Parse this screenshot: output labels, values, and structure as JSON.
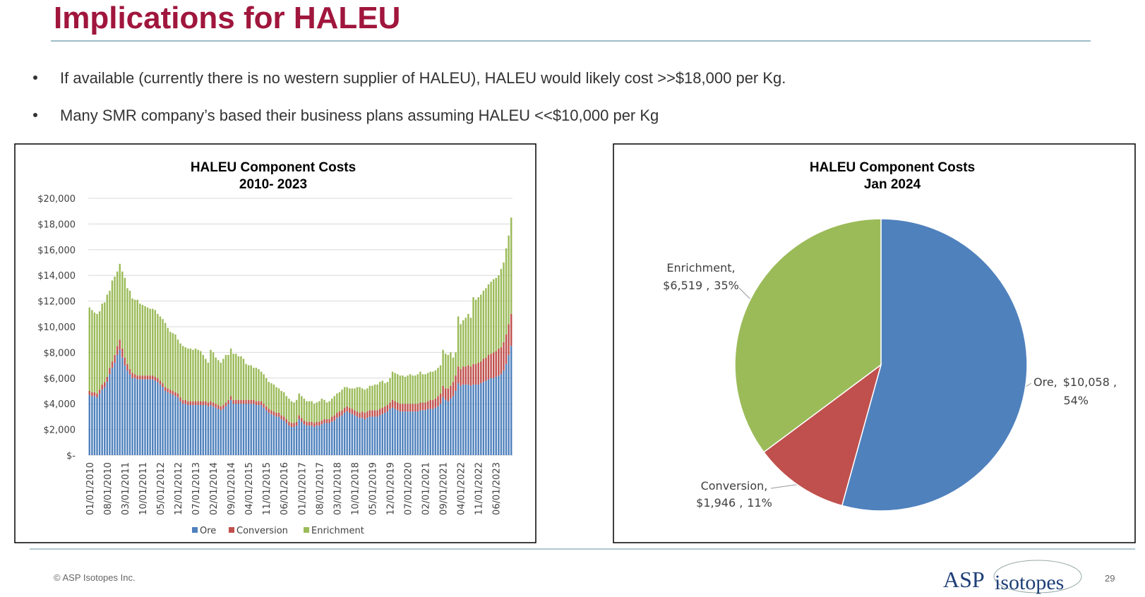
{
  "header": {
    "title": "Implications for HALEU"
  },
  "bullets": [
    "If available (currently there is no western supplier of HALEU), HALEU would likely cost >>$18,000 per Kg.",
    "Many SMR company’s based their business plans assuming HALEU <<$10,000 per Kg"
  ],
  "footer": {
    "copyright": "© ASP Isotopes Inc.",
    "logo": [
      "ASP",
      "isotopes"
    ],
    "page_number": "29"
  },
  "chart_data": [
    {
      "type": "bar",
      "stacked": true,
      "title": "HALEU Component Costs",
      "subtitle": "2010- 2023",
      "categories": [
        "01/01/2010",
        null,
        null,
        null,
        null,
        null,
        null,
        "08/01/2010",
        null,
        null,
        null,
        null,
        null,
        null,
        "03/01/2011",
        null,
        null,
        null,
        null,
        null,
        null,
        "10/01/2011",
        null,
        null,
        null,
        null,
        null,
        null,
        "05/01/2012",
        null,
        null,
        null,
        null,
        null,
        null,
        "12/01/2012",
        null,
        null,
        null,
        null,
        null,
        null,
        "07/01/2013",
        null,
        null,
        null,
        null,
        null,
        null,
        "02/01/2014",
        null,
        null,
        null,
        null,
        null,
        null,
        "09/01/2014",
        null,
        null,
        null,
        null,
        null,
        null,
        "04/01/2015",
        null,
        null,
        null,
        null,
        null,
        null,
        "11/01/2015",
        null,
        null,
        null,
        null,
        null,
        null,
        "06/01/2016",
        null,
        null,
        null,
        null,
        null,
        null,
        "01/01/2017",
        null,
        null,
        null,
        null,
        null,
        null,
        "08/01/2017",
        null,
        null,
        null,
        null,
        null,
        null,
        "03/01/2018",
        null,
        null,
        null,
        null,
        null,
        null,
        "10/01/2018",
        null,
        null,
        null,
        null,
        null,
        null,
        "05/01/2019",
        null,
        null,
        null,
        null,
        null,
        null,
        "12/01/2019",
        null,
        null,
        null,
        null,
        null,
        null,
        "07/01/2020",
        null,
        null,
        null,
        null,
        null,
        null,
        "02/01/2021",
        null,
        null,
        null,
        null,
        null,
        null,
        "09/01/2021",
        null,
        null,
        null,
        null,
        null,
        null,
        "04/01/2022",
        null,
        null,
        null,
        null,
        null,
        null,
        "11/01/2022",
        null,
        null,
        null,
        null,
        null,
        null,
        "06/01/2023",
        null,
        null,
        null,
        null,
        null,
        null
      ],
      "series": [
        {
          "name": "Ore",
          "color": "#4f81bd",
          "values": [
            4700,
            4600,
            4600,
            4500,
            4800,
            5100,
            5300,
            5700,
            6300,
            6800,
            7200,
            7800,
            8200,
            7600,
            7000,
            6600,
            6300,
            6000,
            6000,
            5900,
            5900,
            5900,
            5900,
            5900,
            5900,
            5900,
            5800,
            5700,
            5500,
            5300,
            5000,
            4900,
            4800,
            4700,
            4600,
            4500,
            4200,
            4000,
            4000,
            3900,
            3900,
            3900,
            3900,
            3900,
            3900,
            3900,
            3900,
            3800,
            3900,
            3800,
            3700,
            3600,
            3500,
            3600,
            3800,
            4000,
            4300,
            4000,
            4000,
            4000,
            4000,
            4000,
            4000,
            4000,
            4000,
            4000,
            3900,
            3900,
            3900,
            3700,
            3500,
            3300,
            3200,
            3100,
            3000,
            3000,
            2800,
            2700,
            2500,
            2300,
            2200,
            2200,
            2300,
            2800,
            2600,
            2400,
            2300,
            2300,
            2300,
            2200,
            2300,
            2300,
            2400,
            2500,
            2500,
            2500,
            2600,
            2700,
            2900,
            3000,
            3100,
            3300,
            3400,
            3300,
            3200,
            3100,
            3000,
            2900,
            2900,
            2800,
            2900,
            3000,
            3000,
            3000,
            3000,
            3100,
            3200,
            3300,
            3400,
            3600,
            3700,
            3600,
            3500,
            3400,
            3400,
            3400,
            3400,
            3400,
            3400,
            3400,
            3400,
            3500,
            3500,
            3500,
            3600,
            3600,
            3600,
            3700,
            3800,
            4000,
            4500,
            4300,
            4200,
            4400,
            4600,
            5000,
            5600,
            5400,
            5500,
            5500,
            5500,
            5400,
            5500,
            5500,
            5500,
            5600,
            5700,
            5800,
            5900,
            6000,
            6000,
            6100,
            6200,
            6300,
            6600,
            7100,
            7800,
            8500
          ]
        },
        {
          "name": "Conversion",
          "color": "#c0504d",
          "values": [
            300,
            300,
            300,
            300,
            300,
            400,
            400,
            400,
            500,
            500,
            600,
            700,
            800,
            700,
            600,
            500,
            400,
            400,
            300,
            300,
            300,
            300,
            300,
            300,
            300,
            300,
            300,
            300,
            300,
            300,
            300,
            300,
            300,
            300,
            300,
            300,
            300,
            300,
            300,
            300,
            300,
            300,
            300,
            300,
            300,
            300,
            300,
            300,
            300,
            300,
            300,
            300,
            300,
            300,
            300,
            300,
            300,
            300,
            300,
            300,
            300,
            300,
            300,
            300,
            300,
            300,
            300,
            300,
            300,
            300,
            300,
            300,
            300,
            300,
            300,
            300,
            300,
            300,
            300,
            300,
            300,
            300,
            300,
            300,
            300,
            300,
            300,
            300,
            300,
            300,
            300,
            300,
            300,
            300,
            300,
            300,
            400,
            400,
            400,
            400,
            400,
            400,
            400,
            400,
            400,
            400,
            400,
            400,
            500,
            500,
            500,
            500,
            500,
            500,
            500,
            500,
            500,
            500,
            500,
            500,
            600,
            600,
            600,
            600,
            600,
            600,
            600,
            600,
            600,
            600,
            600,
            600,
            600,
            600,
            600,
            700,
            700,
            700,
            800,
            800,
            900,
            900,
            1000,
            1000,
            1100,
            1200,
            1300,
            1300,
            1400,
            1400,
            1500,
            1500,
            1600,
            1600,
            1700,
            1700,
            1800,
            1800,
            1900,
            1900,
            2000,
            2000,
            2100,
            2100,
            2200,
            2300,
            2400,
            2500
          ]
        },
        {
          "name": "Enrichment",
          "color": "#9bbb59",
          "values": [
            6500,
            6400,
            6200,
            6200,
            6100,
            6300,
            6200,
            6400,
            6000,
            6300,
            6100,
            5800,
            5900,
            6000,
            6200,
            5900,
            6100,
            5800,
            5800,
            5900,
            5600,
            5500,
            5400,
            5300,
            5200,
            5200,
            5200,
            5000,
            5000,
            5000,
            5000,
            4700,
            4500,
            4500,
            4500,
            4200,
            4200,
            4200,
            4100,
            4100,
            4100,
            4000,
            4100,
            4000,
            3900,
            3600,
            3300,
            3100,
            4000,
            3900,
            3600,
            3500,
            3400,
            3600,
            3700,
            3500,
            3700,
            3600,
            3600,
            3400,
            3400,
            3200,
            2800,
            2700,
            2700,
            2500,
            2600,
            2500,
            2300,
            2300,
            2200,
            2100,
            2100,
            2100,
            2000,
            1900,
            1900,
            1900,
            1800,
            1800,
            1700,
            1600,
            1700,
            1700,
            1700,
            1700,
            1600,
            1600,
            1600,
            1500,
            1500,
            1600,
            1700,
            1500,
            1300,
            1400,
            1400,
            1500,
            1500,
            1500,
            1600,
            1600,
            1500,
            1500,
            1600,
            1700,
            1900,
            2000,
            1800,
            1800,
            1800,
            1900,
            1900,
            2000,
            2000,
            2100,
            2100,
            1800,
            1800,
            1900,
            2200,
            2200,
            2200,
            2200,
            2200,
            2100,
            2200,
            2300,
            2200,
            2200,
            2300,
            2400,
            2200,
            2200,
            2200,
            2200,
            2200,
            2200,
            2200,
            2200,
            2800,
            2700,
            2600,
            2600,
            1900,
            1800,
            3900,
            3500,
            3600,
            3800,
            4000,
            3800,
            5200,
            5000,
            5100,
            5200,
            5300,
            5400,
            5500,
            5600,
            5700,
            5700,
            5700,
            6100,
            6200,
            6700,
            6900,
            7500
          ]
        }
      ],
      "ylim": [
        0,
        20000
      ],
      "yticks": [
        {
          "value": 0,
          "label": "$-"
        },
        {
          "value": 2000,
          "label": "$2,000"
        },
        {
          "value": 4000,
          "label": "$4,000"
        },
        {
          "value": 6000,
          "label": "$6,000"
        },
        {
          "value": 8000,
          "label": "$8,000"
        },
        {
          "value": 10000,
          "label": "$10,000"
        },
        {
          "value": 12000,
          "label": "$12,000"
        },
        {
          "value": 14000,
          "label": "$14,000"
        },
        {
          "value": 16000,
          "label": "$16,000"
        },
        {
          "value": 18000,
          "label": "$18,000"
        },
        {
          "value": 20000,
          "label": "$20,000"
        }
      ],
      "grid": true,
      "legend": "bottom"
    },
    {
      "type": "pie",
      "title": "HALEU Component Costs",
      "subtitle": "Jan 2024",
      "labels": [
        "Ore,",
        "Conversion,",
        "Enrichment,"
      ],
      "values": [
        10058,
        1946,
        6519
      ],
      "value_labels": [
        "$10,058 ,",
        "$1,946 ,",
        "$6,519 ,"
      ],
      "percentages": [
        54,
        11,
        35
      ],
      "percentage_labels": [
        "54%",
        "11%",
        "35%"
      ],
      "colors": [
        "#4f81bd",
        "#c0504d",
        "#9bbb59"
      ]
    }
  ]
}
